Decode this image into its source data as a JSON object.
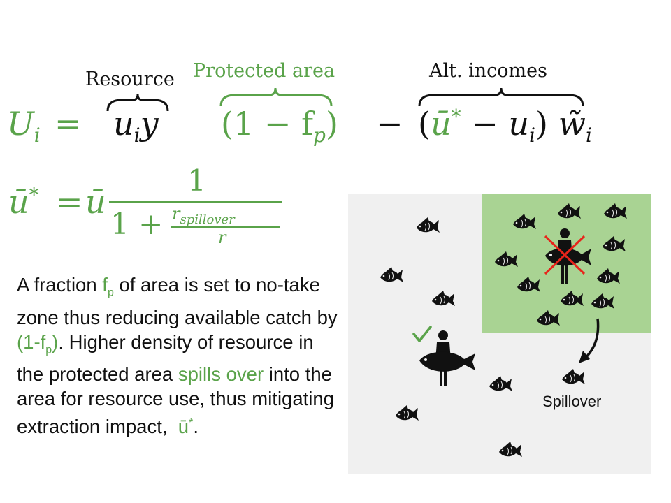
{
  "equation1": {
    "lhs": "U",
    "lhs_sub": "i",
    "equals": "=",
    "term1": "u",
    "term1_sub": "i",
    "term1_var": "y",
    "term2": "(1 − f",
    "term2_sub": "p",
    "term2_close": ")",
    "minus": "−",
    "term3_open": "(",
    "term3_ubar": "ū",
    "term3_star": "*",
    "term3_minus": " − u",
    "term3_sub": "i",
    "term3_close": ")",
    "term3_w": "w̃",
    "term3_w_sub": "i",
    "annotations": {
      "resource": "Resource",
      "protected_area": "Protected area",
      "alt_incomes": "Alt. incomes"
    }
  },
  "equation2": {
    "lhs": "ū",
    "lhs_star": "*",
    "equals": "=",
    "ubar": "ū",
    "numerator": "1",
    "denom_prefix": "1 +",
    "inner_num": "r",
    "inner_num_sub": "spillover",
    "inner_den": "r"
  },
  "description": {
    "p1a": "A fraction ",
    "f": "f",
    "p_sub": "p",
    "p1b": " of area is set to no-take zone thus reducing available catch by ",
    "paren": "(1-f",
    "paren_sub": "p",
    "paren_close": ")",
    "p1c": ". Higher density of resource in the protected area ",
    "spills": "spills over",
    "p2": " into the area for resource use, thus mitigating extraction impact, ",
    "ubar": "ū",
    "ubar_star": "*",
    "end": "."
  },
  "figure": {
    "spillover_label": "Spillover",
    "colors": {
      "background": "#f0f0f0",
      "protected_zone": "#a9d393",
      "check": "#5aa34a",
      "cross": "#e8241a",
      "accent_text": "#5aa34a"
    }
  }
}
